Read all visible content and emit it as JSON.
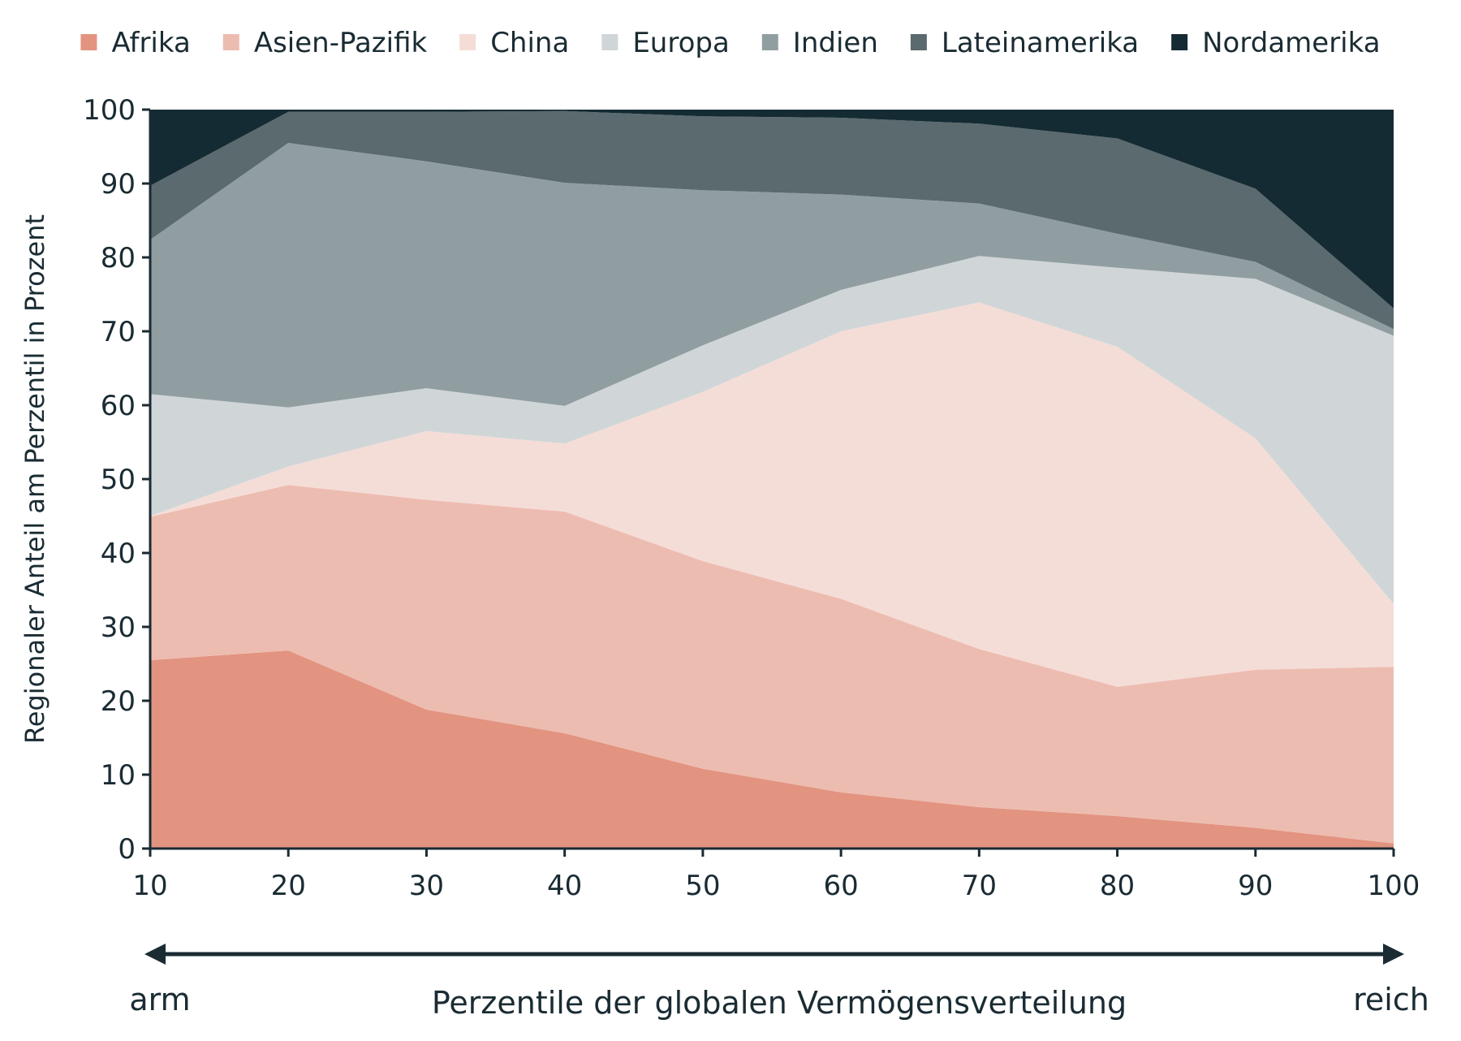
{
  "chart_data": {
    "type": "area",
    "stacked": true,
    "x": [
      10,
      20,
      30,
      40,
      50,
      60,
      70,
      80,
      90,
      100
    ],
    "xlabel": "Perzentile der globalen Vermögensverteilung",
    "ylabel": "Regionaler Anteil am Perzentil in Prozent",
    "xlim": [
      10,
      100
    ],
    "ylim": [
      0,
      100
    ],
    "xticks": [
      "10",
      "20",
      "30",
      "40",
      "50",
      "60",
      "70",
      "80",
      "90",
      "100"
    ],
    "yticks": [
      "0",
      "10",
      "20",
      "30",
      "40",
      "50",
      "60",
      "70",
      "80",
      "90",
      "100"
    ],
    "arrow_left_label": "arm",
    "arrow_right_label": "reich",
    "grid": false,
    "legend_position": "top",
    "series": [
      {
        "name": "Afrika",
        "color": "#e29480",
        "values": [
          25.5,
          26.8,
          18.8,
          15.6,
          10.8,
          7.6,
          5.6,
          4.4,
          2.8,
          0.7
        ]
      },
      {
        "name": "Asien-Pazifik",
        "color": "#edbcb1",
        "values": [
          19.4,
          22.4,
          28.4,
          30.0,
          28.1,
          26.2,
          21.4,
          17.5,
          21.4,
          23.9
        ]
      },
      {
        "name": "China",
        "color": "#f5ddd7",
        "values": [
          0.1,
          2.5,
          9.3,
          9.2,
          22.9,
          36.2,
          46.9,
          46.0,
          31.3,
          8.5
        ]
      },
      {
        "name": "Europa",
        "color": "#d0d6d8",
        "values": [
          16.5,
          8.0,
          5.8,
          5.1,
          6.3,
          5.6,
          6.3,
          10.7,
          21.6,
          36.3
        ]
      },
      {
        "name": "Indien",
        "color": "#919ea1",
        "values": [
          20.9,
          35.8,
          30.7,
          30.2,
          21.0,
          12.9,
          7.1,
          4.6,
          2.3,
          0.9
        ]
      },
      {
        "name": "Lateinamerika",
        "color": "#5a6a6e",
        "values": [
          7.3,
          4.2,
          6.7,
          9.7,
          10.0,
          10.4,
          10.8,
          12.9,
          9.9,
          2.8
        ]
      },
      {
        "name": "Nordamerika",
        "color": "#152b33",
        "values": [
          10.3,
          0.3,
          0.3,
          0.2,
          0.9,
          1.1,
          1.9,
          3.9,
          10.7,
          26.9
        ]
      }
    ]
  }
}
